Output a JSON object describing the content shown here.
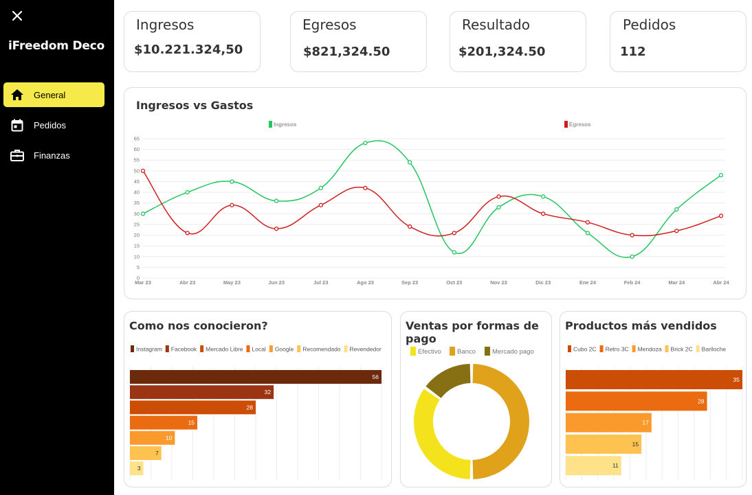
{
  "sidebar": {
    "brand": "iFreedom Deco",
    "items": [
      {
        "label": "General",
        "icon": "home-icon",
        "active": true
      },
      {
        "label": "Pedidos",
        "icon": "calendar-icon",
        "active": false
      },
      {
        "label": "Finanzas",
        "icon": "briefcase-icon",
        "active": false
      }
    ]
  },
  "kpis": [
    {
      "title": "Ingresos",
      "value": "$10.221.324,50"
    },
    {
      "title": "Egresos",
      "value": "$821,324.50"
    },
    {
      "title": "Resultado",
      "value": "$201,324.50"
    },
    {
      "title": "Pedidos",
      "value": "112"
    }
  ],
  "colors": {
    "ingresos": "#22c55e",
    "egresos": "#d01c1c",
    "active_nav": "#f5ea4a"
  },
  "chart_data": [
    {
      "type": "line",
      "title": "Ingresos vs Gastos",
      "categories": [
        "Mar 23",
        "Abr 23",
        "May 23",
        "Jun 23",
        "Jul 23",
        "Ago 23",
        "Sep 23",
        "Oct 23",
        "Nov 23",
        "Dic 23",
        "Ene 24",
        "Feb 24",
        "Mar 24",
        "Abr 24"
      ],
      "series": [
        {
          "name": "Ingresos",
          "color": "#22c55e",
          "values": [
            30,
            40,
            45,
            36,
            42,
            63,
            54,
            12,
            33,
            38,
            21,
            10,
            32,
            48
          ]
        },
        {
          "name": "Egresos",
          "color": "#d01c1c",
          "values": [
            50,
            21,
            34,
            23,
            34,
            42,
            24,
            21,
            38,
            30,
            26,
            20,
            22,
            29
          ]
        }
      ],
      "ylim": [
        0,
        65
      ],
      "yticks": [
        0,
        5,
        10,
        15,
        20,
        25,
        30,
        35,
        40,
        45,
        50,
        55,
        60,
        65
      ],
      "grid": true,
      "legend": "top"
    },
    {
      "type": "bar",
      "orientation": "horizontal",
      "title": "Como nos conocieron?",
      "categories": [
        "Instagram",
        "Facebook",
        "Mercado Libre",
        "Local",
        "Google",
        "Recomendado",
        "Revendedor"
      ],
      "values": [
        56,
        32,
        28,
        15,
        10,
        7,
        3
      ],
      "colors": [
        "#6b2a0c",
        "#9a3412",
        "#cc4d05",
        "#ea6b10",
        "#fb9a2c",
        "#fdc24f",
        "#fde28a"
      ],
      "label_colors": [
        "#ffffff",
        "#ffffff",
        "#ffffff",
        "#ffffff",
        "#ffffff",
        "#333333",
        "#333333"
      ],
      "xlim": [
        0,
        56
      ],
      "legend": "top"
    },
    {
      "type": "pie",
      "variant": "doughnut",
      "title": "Ventas por formas de pago",
      "categories": [
        "Efectivo",
        "Banco",
        "Mercado pago"
      ],
      "values": [
        35,
        50,
        15
      ],
      "colors": [
        "#f4e31c",
        "#e0a11b",
        "#877014"
      ],
      "legend": "top"
    },
    {
      "type": "bar",
      "orientation": "horizontal",
      "title": "Productos más vendidos",
      "categories": [
        "Cubo 2C",
        "Retro 3C",
        "Mendoza",
        "Brick 2C",
        "Bariloche"
      ],
      "values": [
        35,
        28,
        17,
        15,
        11
      ],
      "colors": [
        "#cc4d05",
        "#ea6b10",
        "#fb9a2c",
        "#fdc24f",
        "#fde28a"
      ],
      "label_colors": [
        "#ffffff",
        "#ffffff",
        "#ffffff",
        "#333333",
        "#333333"
      ],
      "xlim": [
        0,
        35
      ],
      "legend": "top"
    }
  ]
}
